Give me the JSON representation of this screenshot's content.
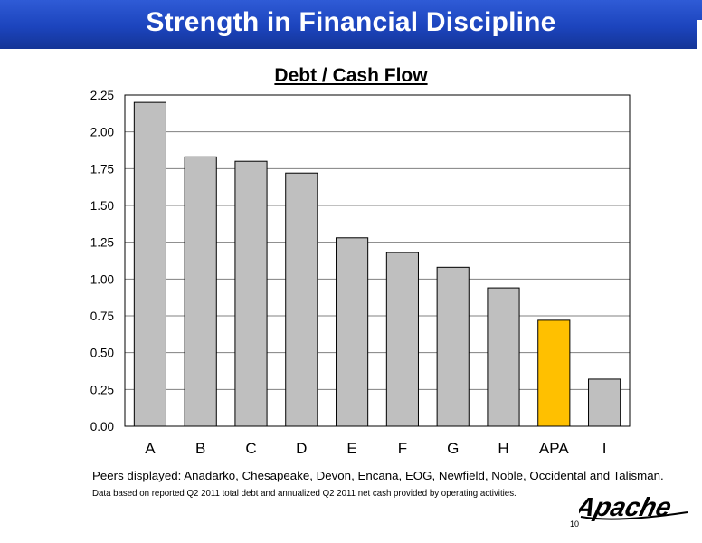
{
  "header": {
    "title": "Strength in Financial Discipline"
  },
  "chart_data": {
    "type": "bar",
    "title": "Debt / Cash Flow",
    "xlabel": "",
    "ylabel": "",
    "categories": [
      "A",
      "B",
      "C",
      "D",
      "E",
      "F",
      "G",
      "H",
      "APA",
      "I"
    ],
    "values": [
      2.2,
      1.83,
      1.8,
      1.72,
      1.28,
      1.18,
      1.08,
      0.94,
      0.72,
      0.32
    ],
    "ylim": [
      0,
      2.25
    ],
    "yticks": [
      "0.00",
      "0.25",
      "0.50",
      "0.75",
      "1.00",
      "1.25",
      "1.50",
      "1.75",
      "2.00",
      "2.25"
    ],
    "grid": true,
    "bar_color": "#bfbfbf",
    "highlight_category": "APA",
    "highlight_color": "#ffc000"
  },
  "footnotes": {
    "peers": "Peers displayed: Anadarko, Chesapeake, Devon, Encana, EOG, Newfield, Noble, Occidental and Talisman.",
    "source": "Data based on reported Q2 2011 total debt and annualized Q2 2011 net cash provided by operating activities."
  },
  "page_number": "10",
  "logo": {
    "text": "Apache"
  }
}
